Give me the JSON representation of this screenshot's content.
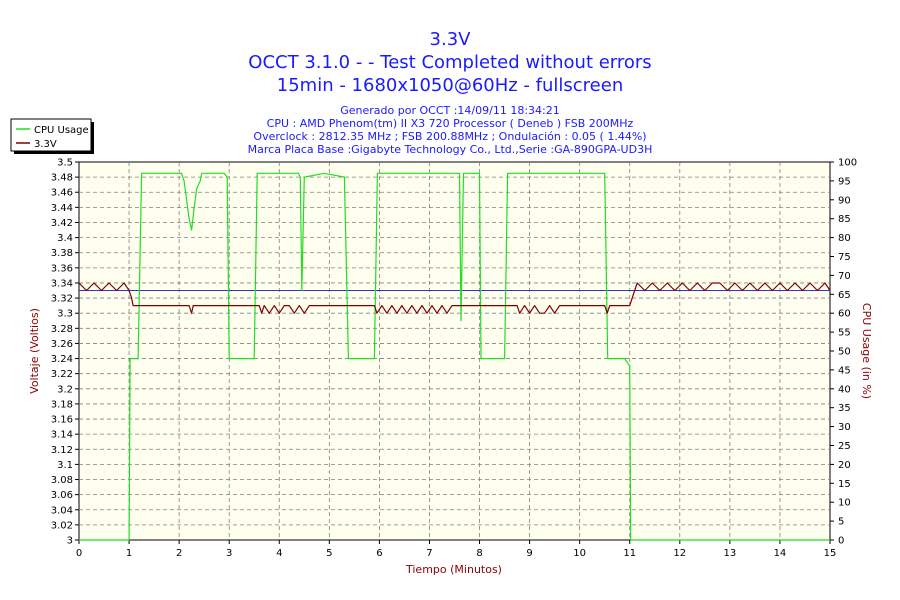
{
  "chart_data": {
    "type": "line",
    "title": "3.3V",
    "subtitle_lines": [
      "OCCT 3.1.0 -  - Test Completed without errors",
      "15min - 1680x1050@60Hz - fullscreen"
    ],
    "info_lines": [
      "Generado por OCCT :14/09/11 18:34:21",
      "CPU : AMD Phenom(tm) II X3 720 Processor ( Deneb ) FSB 200MHz",
      "Overclock : 2812.35 MHz ; FSB 200.88MHz ; Ondulación : 0.05 ( 1.44%)",
      "Marca Placa Base :Gigabyte Technology Co., Ltd.,Serie :GA-890GPA-UD3H"
    ],
    "xlabel": "Tiempo (Minutos)",
    "ylabel_left": "Voltaje (Voltios)",
    "ylabel_right": "CPU Usage (in %)",
    "xlim": [
      0,
      15
    ],
    "ylim_left": [
      3.0,
      3.5
    ],
    "ylim_right": [
      0,
      100
    ],
    "x_ticks": [
      "0",
      "1",
      "2",
      "3",
      "4",
      "5",
      "6",
      "7",
      "8",
      "9",
      "10",
      "11",
      "12",
      "13",
      "14",
      "15"
    ],
    "y_left_ticks": [
      "3",
      "3.02",
      "3.04",
      "3.06",
      "3.08",
      "3.1",
      "3.12",
      "3.14",
      "3.16",
      "3.18",
      "3.2",
      "3.22",
      "3.24",
      "3.26",
      "3.28",
      "3.3",
      "3.32",
      "3.34",
      "3.36",
      "3.38",
      "3.4",
      "3.42",
      "3.44",
      "3.46",
      "3.48",
      "3.5"
    ],
    "y_right_ticks": [
      "0",
      "5",
      "10",
      "15",
      "20",
      "25",
      "30",
      "35",
      "40",
      "45",
      "50",
      "55",
      "60",
      "65",
      "70",
      "75",
      "80",
      "85",
      "90",
      "95",
      "100"
    ],
    "grid": true,
    "legend_position": "top-left",
    "reference_line": {
      "axis": "left",
      "y": 3.33,
      "color": "#3333cc"
    },
    "series": [
      {
        "name": "CPU Usage",
        "axis": "right",
        "color": "#22dd22",
        "points": [
          [
            0,
            0
          ],
          [
            0.99,
            0
          ],
          [
            1.0,
            0
          ],
          [
            1.02,
            48
          ],
          [
            1.18,
            48
          ],
          [
            1.25,
            97
          ],
          [
            1.8,
            97
          ],
          [
            2.05,
            97
          ],
          [
            2.1,
            95
          ],
          [
            2.15,
            90
          ],
          [
            2.2,
            85
          ],
          [
            2.25,
            82
          ],
          [
            2.3,
            88
          ],
          [
            2.35,
            93
          ],
          [
            2.42,
            95
          ],
          [
            2.45,
            97
          ],
          [
            2.9,
            97
          ],
          [
            2.96,
            96
          ],
          [
            3.0,
            48
          ],
          [
            3.5,
            48
          ],
          [
            3.56,
            97
          ],
          [
            4.38,
            97
          ],
          [
            4.42,
            96
          ],
          [
            4.45,
            66
          ],
          [
            4.5,
            96
          ],
          [
            4.9,
            97
          ],
          [
            5.3,
            96
          ],
          [
            5.38,
            48
          ],
          [
            5.9,
            48
          ],
          [
            5.96,
            97
          ],
          [
            7.6,
            97
          ],
          [
            7.63,
            58
          ],
          [
            7.68,
            97
          ],
          [
            8.0,
            97
          ],
          [
            8.03,
            48
          ],
          [
            8.5,
            48
          ],
          [
            8.56,
            97
          ],
          [
            10.5,
            97
          ],
          [
            10.56,
            48
          ],
          [
            10.9,
            48
          ],
          [
            11.0,
            46
          ],
          [
            11.02,
            0
          ],
          [
            15,
            0
          ]
        ]
      },
      {
        "name": "3.3V",
        "axis": "left",
        "color": "#800000",
        "points": [
          [
            0,
            3.34
          ],
          [
            0.15,
            3.33
          ],
          [
            0.3,
            3.34
          ],
          [
            0.45,
            3.33
          ],
          [
            0.6,
            3.34
          ],
          [
            0.75,
            3.33
          ],
          [
            0.9,
            3.34
          ],
          [
            1.0,
            3.33
          ],
          [
            1.05,
            3.32
          ],
          [
            1.08,
            3.31
          ],
          [
            2.2,
            3.31
          ],
          [
            2.25,
            3.3
          ],
          [
            2.28,
            3.31
          ],
          [
            3.6,
            3.31
          ],
          [
            3.65,
            3.3
          ],
          [
            3.7,
            3.31
          ],
          [
            3.8,
            3.3
          ],
          [
            3.9,
            3.31
          ],
          [
            4.0,
            3.3
          ],
          [
            4.1,
            3.31
          ],
          [
            4.2,
            3.31
          ],
          [
            4.3,
            3.3
          ],
          [
            4.4,
            3.31
          ],
          [
            4.5,
            3.3
          ],
          [
            4.6,
            3.31
          ],
          [
            5.9,
            3.31
          ],
          [
            5.95,
            3.3
          ],
          [
            6.05,
            3.31
          ],
          [
            6.15,
            3.3
          ],
          [
            6.25,
            3.31
          ],
          [
            6.35,
            3.3
          ],
          [
            6.45,
            3.31
          ],
          [
            6.55,
            3.3
          ],
          [
            6.65,
            3.31
          ],
          [
            6.75,
            3.3
          ],
          [
            6.85,
            3.31
          ],
          [
            6.95,
            3.3
          ],
          [
            7.05,
            3.31
          ],
          [
            7.15,
            3.3
          ],
          [
            7.25,
            3.31
          ],
          [
            7.35,
            3.3
          ],
          [
            7.45,
            3.31
          ],
          [
            7.55,
            3.31
          ],
          [
            8.75,
            3.31
          ],
          [
            8.8,
            3.3
          ],
          [
            8.9,
            3.31
          ],
          [
            9.0,
            3.3
          ],
          [
            9.1,
            3.31
          ],
          [
            9.2,
            3.3
          ],
          [
            9.3,
            3.3
          ],
          [
            9.4,
            3.31
          ],
          [
            9.5,
            3.3
          ],
          [
            9.6,
            3.31
          ],
          [
            9.7,
            3.31
          ],
          [
            10.5,
            3.31
          ],
          [
            10.55,
            3.3
          ],
          [
            10.6,
            3.31
          ],
          [
            11.0,
            3.31
          ],
          [
            11.1,
            3.33
          ],
          [
            11.15,
            3.34
          ],
          [
            11.3,
            3.33
          ],
          [
            11.45,
            3.34
          ],
          [
            11.6,
            3.33
          ],
          [
            11.75,
            3.34
          ],
          [
            11.9,
            3.33
          ],
          [
            12.05,
            3.34
          ],
          [
            12.2,
            3.33
          ],
          [
            12.35,
            3.34
          ],
          [
            12.5,
            3.33
          ],
          [
            12.65,
            3.34
          ],
          [
            12.8,
            3.34
          ],
          [
            12.95,
            3.33
          ],
          [
            13.1,
            3.34
          ],
          [
            13.25,
            3.33
          ],
          [
            13.4,
            3.34
          ],
          [
            13.55,
            3.33
          ],
          [
            13.7,
            3.34
          ],
          [
            13.85,
            3.33
          ],
          [
            14.0,
            3.34
          ],
          [
            14.15,
            3.33
          ],
          [
            14.3,
            3.34
          ],
          [
            14.45,
            3.33
          ],
          [
            14.6,
            3.34
          ],
          [
            14.75,
            3.33
          ],
          [
            14.9,
            3.34
          ],
          [
            15,
            3.33
          ]
        ]
      }
    ]
  }
}
